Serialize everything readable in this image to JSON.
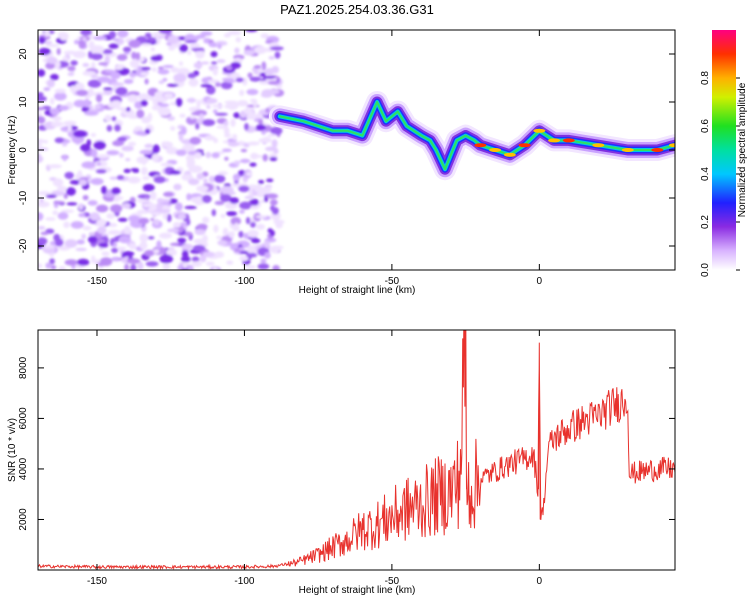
{
  "page": {
    "title": "PAZ1.2025.254.03.36.G31"
  },
  "chart_data": [
    {
      "type": "heatmap",
      "title": "PAZ1.2025.254.03.36.G31",
      "xlabel": "Height of straight line (km)",
      "ylabel": "Frequency (Hz)",
      "xlim": [
        -170,
        46
      ],
      "ylim": [
        -25,
        25
      ],
      "x_ticks": [
        -150,
        -100,
        -50,
        0
      ],
      "y_ticks": [
        -20,
        -10,
        0,
        10,
        20
      ],
      "colorbar": {
        "label": "Normalized spectral amplitude",
        "range": [
          0,
          1
        ],
        "ticks": [
          0.0,
          0.2,
          0.4,
          0.6,
          0.8
        ],
        "tick_labels": [
          "0.0",
          "0.2",
          "0.4",
          "0.6",
          "0.8"
        ],
        "colormap": "rainbow (white to purple to blue to cyan to green to yellow to orange to red to magenta)"
      },
      "ridge": {
        "description": "dominant frequency track",
        "x": [
          -88,
          -80,
          -75,
          -70,
          -65,
          -60,
          -55,
          -52,
          -48,
          -45,
          -40,
          -37,
          -35,
          -32,
          -30,
          -28,
          -25,
          -22,
          -20,
          -15,
          -10,
          -5,
          0,
          5,
          10,
          20,
          30,
          40,
          46
        ],
        "y": [
          7,
          6,
          5,
          4,
          4,
          3,
          10,
          6,
          8,
          5,
          3,
          2,
          0,
          -4,
          -1,
          2,
          3,
          2,
          1,
          0,
          -1,
          1,
          4,
          2,
          2,
          1,
          0,
          0,
          1
        ]
      },
      "noise_region_x": [
        -170,
        -88
      ]
    },
    {
      "type": "line",
      "xlabel": "Height of straight line (km)",
      "ylabel": "SNR (10 * v/v)",
      "xlim": [
        -170,
        46
      ],
      "ylim": [
        0,
        9500
      ],
      "x_ticks": [
        -150,
        -100,
        -50,
        0
      ],
      "y_ticks": [
        2000,
        4000,
        6000,
        8000
      ],
      "color": "#e8322d",
      "series": [
        {
          "x": [
            -170,
            -150,
            -120,
            -100,
            -90,
            -82,
            -75,
            -70,
            -65,
            -60,
            -55,
            -50,
            -45,
            -40,
            -35,
            -30,
            -27,
            -25,
            -24.8,
            -24.5,
            -22,
            -20,
            -15,
            -10,
            -5,
            -2,
            -0.5,
            0,
            0.5,
            1.5,
            3,
            5,
            10,
            15,
            20,
            25,
            30,
            30.5,
            35,
            40,
            46
          ],
          "y": [
            150,
            120,
            120,
            120,
            150,
            300,
            600,
            900,
            1200,
            1600,
            1800,
            2100,
            2400,
            2600,
            2900,
            3100,
            3600,
            9500,
            3300,
            3200,
            3300,
            3600,
            3900,
            4200,
            4400,
            4600,
            3200,
            9000,
            2000,
            2600,
            4800,
            5200,
            5600,
            5900,
            6100,
            6500,
            6800,
            3800,
            3900,
            4000,
            4000
          ]
        }
      ]
    }
  ]
}
